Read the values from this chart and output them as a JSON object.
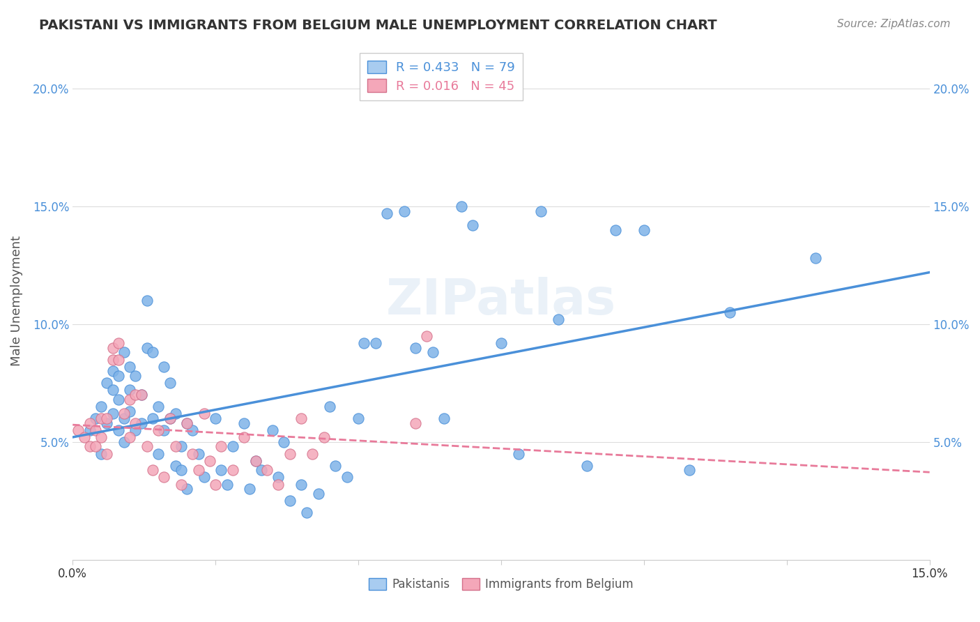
{
  "title": "PAKISTANI VS IMMIGRANTS FROM BELGIUM MALE UNEMPLOYMENT CORRELATION CHART",
  "source": "Source: ZipAtlas.com",
  "ylabel": "Male Unemployment",
  "xlim": [
    0.0,
    0.15
  ],
  "ylim": [
    0.0,
    0.22
  ],
  "pakistani_R": 0.433,
  "pakistani_N": 79,
  "belgium_R": 0.016,
  "belgium_N": 45,
  "pakistani_color": "#7FB3E8",
  "belgium_color": "#F4A7B9",
  "pakistani_line_color": "#4A90D9",
  "belgium_line_color": "#E87A9A",
  "legend_box_color_pak": "#A8CCF0",
  "legend_box_color_bel": "#F4A7B9",
  "watermark": "ZIPatlas",
  "pakistani_x": [
    0.003,
    0.004,
    0.005,
    0.005,
    0.006,
    0.006,
    0.007,
    0.007,
    0.007,
    0.008,
    0.008,
    0.008,
    0.009,
    0.009,
    0.009,
    0.01,
    0.01,
    0.01,
    0.011,
    0.011,
    0.012,
    0.012,
    0.013,
    0.013,
    0.014,
    0.014,
    0.015,
    0.015,
    0.016,
    0.016,
    0.017,
    0.017,
    0.018,
    0.018,
    0.019,
    0.019,
    0.02,
    0.02,
    0.021,
    0.022,
    0.023,
    0.025,
    0.026,
    0.027,
    0.028,
    0.03,
    0.031,
    0.032,
    0.033,
    0.035,
    0.036,
    0.037,
    0.038,
    0.04,
    0.041,
    0.043,
    0.045,
    0.046,
    0.048,
    0.05,
    0.051,
    0.053,
    0.055,
    0.058,
    0.06,
    0.063,
    0.065,
    0.068,
    0.07,
    0.075,
    0.078,
    0.082,
    0.085,
    0.09,
    0.095,
    0.1,
    0.108,
    0.115,
    0.13
  ],
  "pakistani_y": [
    0.055,
    0.06,
    0.065,
    0.045,
    0.058,
    0.075,
    0.062,
    0.072,
    0.08,
    0.055,
    0.068,
    0.078,
    0.05,
    0.06,
    0.088,
    0.063,
    0.072,
    0.082,
    0.055,
    0.078,
    0.058,
    0.07,
    0.09,
    0.11,
    0.06,
    0.088,
    0.045,
    0.065,
    0.055,
    0.082,
    0.06,
    0.075,
    0.04,
    0.062,
    0.038,
    0.048,
    0.03,
    0.058,
    0.055,
    0.045,
    0.035,
    0.06,
    0.038,
    0.032,
    0.048,
    0.058,
    0.03,
    0.042,
    0.038,
    0.055,
    0.035,
    0.05,
    0.025,
    0.032,
    0.02,
    0.028,
    0.065,
    0.04,
    0.035,
    0.06,
    0.092,
    0.092,
    0.147,
    0.148,
    0.09,
    0.088,
    0.06,
    0.15,
    0.142,
    0.092,
    0.045,
    0.148,
    0.102,
    0.04,
    0.14,
    0.14,
    0.038,
    0.105,
    0.128
  ],
  "belgium_x": [
    0.001,
    0.002,
    0.003,
    0.003,
    0.004,
    0.004,
    0.005,
    0.005,
    0.006,
    0.006,
    0.007,
    0.007,
    0.008,
    0.008,
    0.009,
    0.01,
    0.01,
    0.011,
    0.011,
    0.012,
    0.013,
    0.014,
    0.015,
    0.016,
    0.017,
    0.018,
    0.019,
    0.02,
    0.021,
    0.022,
    0.023,
    0.024,
    0.025,
    0.026,
    0.028,
    0.03,
    0.032,
    0.034,
    0.036,
    0.038,
    0.04,
    0.042,
    0.044,
    0.06,
    0.062
  ],
  "belgium_y": [
    0.055,
    0.052,
    0.058,
    0.048,
    0.055,
    0.048,
    0.052,
    0.06,
    0.045,
    0.06,
    0.085,
    0.09,
    0.085,
    0.092,
    0.062,
    0.052,
    0.068,
    0.058,
    0.07,
    0.07,
    0.048,
    0.038,
    0.055,
    0.035,
    0.06,
    0.048,
    0.032,
    0.058,
    0.045,
    0.038,
    0.062,
    0.042,
    0.032,
    0.048,
    0.038,
    0.052,
    0.042,
    0.038,
    0.032,
    0.045,
    0.06,
    0.045,
    0.052,
    0.058,
    0.095
  ]
}
